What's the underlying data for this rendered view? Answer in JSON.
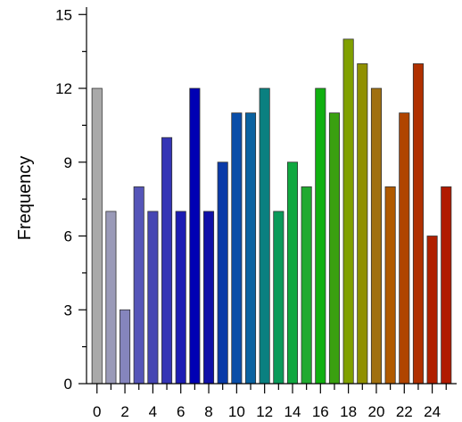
{
  "chart_data": {
    "type": "bar",
    "title": "",
    "xlabel": "",
    "ylabel": "Frequency",
    "x": [
      0,
      1,
      2,
      3,
      4,
      5,
      6,
      7,
      8,
      9,
      10,
      11,
      12,
      13,
      14,
      15,
      16,
      17,
      18,
      19,
      20,
      21,
      22,
      23,
      24,
      25
    ],
    "values": [
      12,
      7,
      3,
      8,
      7,
      10,
      7,
      12,
      7,
      9,
      11,
      11,
      12,
      7,
      9,
      8,
      12,
      11,
      14,
      13,
      12,
      8,
      11,
      13,
      6,
      8
    ],
    "colors": [
      "#a9a9a9",
      "#9a9ab8",
      "#8585bd",
      "#5555b8",
      "#4646b3",
      "#3535b5",
      "#1d1db3",
      "#0000b3",
      "#1010a8",
      "#0a3aa8",
      "#0a4ea8",
      "#0a62a0",
      "#0a8080",
      "#0a9a5a",
      "#10a840",
      "#20aa30",
      "#10b010",
      "#3aa010",
      "#80a000",
      "#909000",
      "#a07010",
      "#b05a00",
      "#b04500",
      "#b03000",
      "#b02000",
      "#b01a00"
    ],
    "xticks": [
      0,
      2,
      4,
      6,
      8,
      10,
      12,
      14,
      16,
      18,
      20,
      22,
      24
    ],
    "yticks": [
      0,
      3,
      6,
      9,
      12,
      15
    ],
    "xlim": [
      -0.75,
      25.75
    ],
    "ylim": [
      0,
      15.3
    ],
    "grid": false
  }
}
